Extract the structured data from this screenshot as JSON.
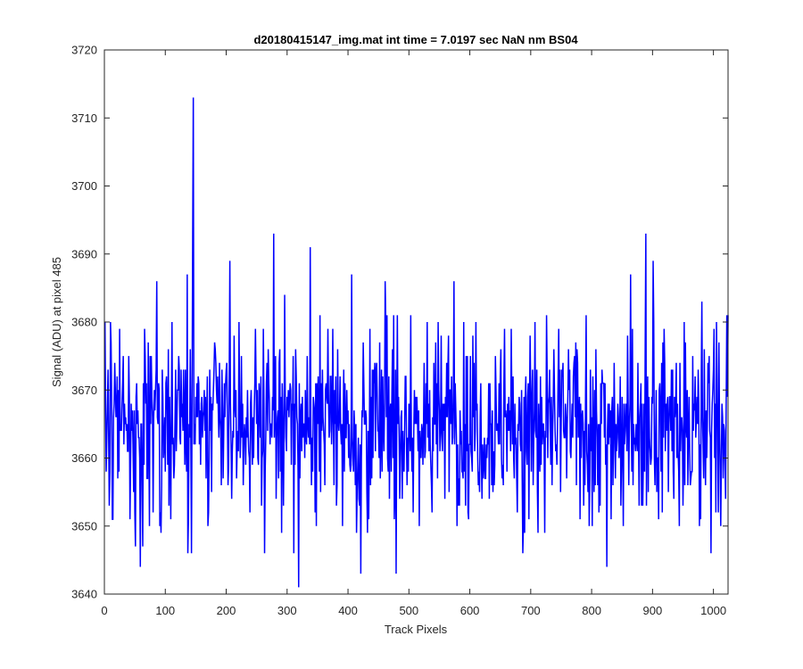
{
  "chart_data": {
    "type": "line",
    "title": "d20180415147_img.mat int time = 7.0197 sec  NaN nm BS04",
    "xlabel": "Track Pixels",
    "ylabel": "Signal (ADU) at pixel 485",
    "xlim": [
      0,
      1024
    ],
    "ylim": [
      3640,
      3720
    ],
    "xticks": [
      0,
      100,
      200,
      300,
      400,
      500,
      600,
      700,
      800,
      900,
      1000
    ],
    "yticks": [
      3640,
      3650,
      3660,
      3670,
      3680,
      3690,
      3700,
      3710,
      3720
    ],
    "grid": false,
    "box": true,
    "series": [
      {
        "color": "#0000ff",
        "baseline": 3665,
        "typical_range": [
          3652,
          3678
        ],
        "peaks": [
          {
            "x": 145,
            "y": 3713
          },
          {
            "x": 144,
            "y": 3693
          },
          {
            "x": 277,
            "y": 3693
          },
          {
            "x": 295,
            "y": 3684
          },
          {
            "x": 337,
            "y": 3691
          },
          {
            "x": 85,
            "y": 3686
          },
          {
            "x": 135,
            "y": 3687
          },
          {
            "x": 205,
            "y": 3689
          },
          {
            "x": 405,
            "y": 3687
          },
          {
            "x": 460,
            "y": 3686
          },
          {
            "x": 573,
            "y": 3686
          },
          {
            "x": 888,
            "y": 3693
          },
          {
            "x": 900,
            "y": 3689
          },
          {
            "x": 863,
            "y": 3687
          },
          {
            "x": 980,
            "y": 3683
          }
        ],
        "troughs": [
          {
            "x": 58,
            "y": 3644
          },
          {
            "x": 62,
            "y": 3647
          },
          {
            "x": 50,
            "y": 3647
          },
          {
            "x": 136,
            "y": 3646
          },
          {
            "x": 142,
            "y": 3646
          },
          {
            "x": 262,
            "y": 3646
          },
          {
            "x": 310,
            "y": 3646
          },
          {
            "x": 318,
            "y": 3641
          },
          {
            "x": 420,
            "y": 3643
          },
          {
            "x": 478,
            "y": 3643
          },
          {
            "x": 686,
            "y": 3646
          },
          {
            "x": 824,
            "y": 3644
          },
          {
            "x": 995,
            "y": 3646
          }
        ]
      }
    ]
  }
}
